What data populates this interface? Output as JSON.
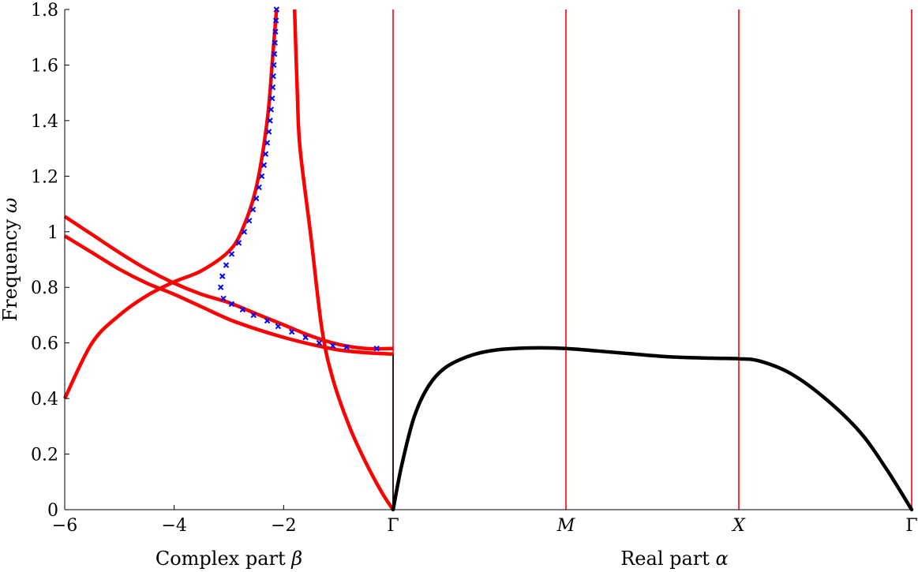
{
  "chart_data": {
    "type": "line",
    "ylabel": "Frequency ω",
    "ylim": [
      0,
      1.8
    ],
    "yticks": [
      "0",
      "0.2",
      "0.4",
      "0.6",
      "0.8",
      "1",
      "1.2",
      "1.4",
      "1.6",
      "1.8"
    ],
    "grid": false,
    "colors": {
      "complex_branches": "#ff0000",
      "markers": "#0000ff",
      "real_band": "#000000",
      "symmetry_lines": "#ff0000"
    },
    "left_panel": {
      "xlabel": "Complex part β",
      "xlim": [
        -6,
        0
      ],
      "xticks": [
        "−6",
        "−4",
        "−2"
      ],
      "series": [
        {
          "values": [
            [
              -6,
              1.055
            ],
            [
              -5.5,
              0.99
            ],
            [
              -5,
              0.925
            ],
            [
              -4.5,
              0.865
            ],
            [
              -4,
              0.815
            ],
            [
              -3.5,
              0.775
            ],
            [
              -3,
              0.745
            ],
            [
              -2.5,
              0.705
            ],
            [
              -2,
              0.665
            ],
            [
              -1.5,
              0.625
            ],
            [
              -1,
              0.595
            ],
            [
              -0.5,
              0.58
            ],
            [
              0,
              0.58
            ]
          ]
        },
        {
          "values": [
            [
              -6,
              0.985
            ],
            [
              -5.5,
              0.925
            ],
            [
              -5,
              0.865
            ],
            [
              -4.5,
              0.815
            ],
            [
              -4,
              0.775
            ],
            [
              -3.5,
              0.73
            ],
            [
              -3,
              0.685
            ],
            [
              -2.5,
              0.65
            ],
            [
              -2,
              0.62
            ],
            [
              -1.5,
              0.595
            ],
            [
              -1,
              0.575
            ],
            [
              -0.5,
              0.565
            ],
            [
              0,
              0.56
            ]
          ]
        },
        {
          "values": [
            [
              -6,
              0.4
            ],
            [
              -5.5,
              0.6
            ],
            [
              -5,
              0.7
            ],
            [
              -4.5,
              0.77
            ],
            [
              -4,
              0.82
            ],
            [
              -3.5,
              0.86
            ],
            [
              -3,
              0.93
            ],
            [
              -2.75,
              1.01
            ],
            [
              -2.5,
              1.16
            ],
            [
              -2.3,
              1.4
            ],
            [
              -2.2,
              1.63
            ],
            [
              -2.13,
              1.8
            ]
          ]
        },
        {
          "values": [
            [
              -1.8,
              1.8
            ],
            [
              -1.75,
              1.5
            ],
            [
              -1.7,
              1.3
            ],
            [
              -1.5,
              0.98
            ],
            [
              -1.3,
              0.65
            ],
            [
              -1.1,
              0.47
            ],
            [
              -0.8,
              0.3
            ],
            [
              -0.5,
              0.17
            ],
            [
              -0.2,
              0.06
            ],
            [
              0,
              0
            ]
          ]
        }
      ],
      "markers": {
        "symbol": "×",
        "points": [
          [
            -2.13,
            1.8
          ],
          [
            -2.14,
            1.76
          ],
          [
            -2.15,
            1.72
          ],
          [
            -2.16,
            1.68
          ],
          [
            -2.17,
            1.64
          ],
          [
            -2.18,
            1.6
          ],
          [
            -2.19,
            1.56
          ],
          [
            -2.2,
            1.52
          ],
          [
            -2.21,
            1.48
          ],
          [
            -2.23,
            1.44
          ],
          [
            -2.25,
            1.4
          ],
          [
            -2.27,
            1.36
          ],
          [
            -2.3,
            1.32
          ],
          [
            -2.33,
            1.28
          ],
          [
            -2.36,
            1.24
          ],
          [
            -2.4,
            1.2
          ],
          [
            -2.45,
            1.16
          ],
          [
            -2.5,
            1.12
          ],
          [
            -2.56,
            1.08
          ],
          [
            -2.63,
            1.04
          ],
          [
            -2.72,
            1.0
          ],
          [
            -2.82,
            0.96
          ],
          [
            -2.95,
            0.92
          ],
          [
            -3.05,
            0.88
          ],
          [
            -3.12,
            0.84
          ],
          [
            -3.15,
            0.8
          ],
          [
            -3.1,
            0.76
          ],
          [
            -2.95,
            0.74
          ],
          [
            -2.75,
            0.72
          ],
          [
            -2.55,
            0.7
          ],
          [
            -2.3,
            0.68
          ],
          [
            -2.1,
            0.66
          ],
          [
            -1.85,
            0.64
          ],
          [
            -1.6,
            0.62
          ],
          [
            -1.35,
            0.6
          ],
          [
            -1.1,
            0.59
          ],
          [
            -0.85,
            0.585
          ],
          [
            -0.3,
            0.58
          ]
        ]
      }
    },
    "right_panel": {
      "xlabel": "Real part α",
      "xticks": [
        "Γ",
        "M",
        "X",
        "Γ"
      ],
      "series": [
        {
          "values": [
            [
              0,
              0
            ],
            [
              0.05,
              0.16
            ],
            [
              0.12,
              0.33
            ],
            [
              0.2,
              0.44
            ],
            [
              0.3,
              0.51
            ],
            [
              0.45,
              0.555
            ],
            [
              0.6,
              0.575
            ],
            [
              0.8,
              0.582
            ],
            [
              1,
              0.58
            ],
            [
              1.3,
              0.565
            ],
            [
              1.6,
              0.55
            ],
            [
              1.85,
              0.545
            ],
            [
              2,
              0.543
            ],
            [
              2.12,
              0.535
            ],
            [
              2.3,
              0.49
            ],
            [
              2.5,
              0.4
            ],
            [
              2.7,
              0.28
            ],
            [
              2.85,
              0.15
            ],
            [
              3,
              0
            ]
          ]
        }
      ]
    }
  }
}
